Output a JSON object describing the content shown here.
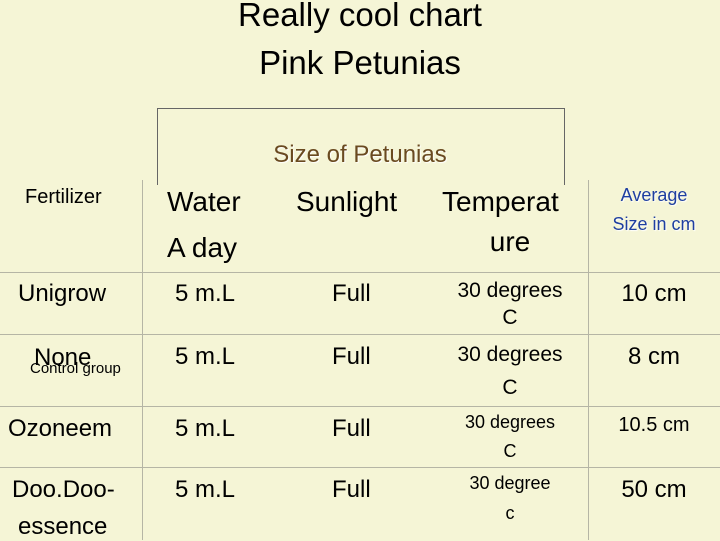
{
  "title": {
    "line1": "Really cool chart",
    "line2": "Pink Petunias"
  },
  "subtitle": "Size of Petunias",
  "headers": {
    "fertilizer": "Fertilizer",
    "water_line1": "Water",
    "water_line2": "A day",
    "sunlight": "Sunlight",
    "temp_line1": "Temperat",
    "temp_line2": "ure",
    "average_line1": "Average",
    "average_line2": "Size in cm"
  },
  "rows": [
    {
      "fertilizer": "Unigrow",
      "water": "5 m.L",
      "sunlight": "Full",
      "temp_line1": "30 degrees",
      "temp_line2": "C",
      "size": "10 cm"
    },
    {
      "fertilizer": "None",
      "fertilizer_note": "Control group",
      "water": "5 m.L",
      "sunlight": "Full",
      "temp_line1": "30 degrees",
      "temp_line2": "C",
      "size": "8 cm"
    },
    {
      "fertilizer": "Ozoneem",
      "water": "5 m.L",
      "sunlight": "Full",
      "temp_line1": "30 degrees",
      "temp_line2": "C",
      "size": "10.5 cm"
    },
    {
      "fertilizer_line1": "Doo.Doo-",
      "fertilizer_line2": "essence",
      "water": "5 m.L",
      "sunlight": "Full",
      "temp_line1": "30 degree",
      "temp_line2": "c",
      "size": "50 cm"
    }
  ]
}
